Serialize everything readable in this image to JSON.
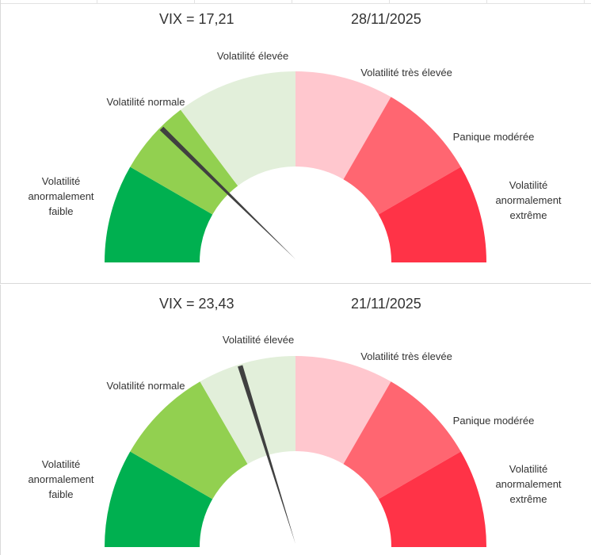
{
  "gauge_segments": [
    {
      "key": "low",
      "label_lines": [
        "Volatilité",
        "anormalement",
        "faible"
      ],
      "color": "#00b050"
    },
    {
      "key": "normal",
      "label_lines": [
        "Volatilité normale"
      ],
      "color": "#92d050"
    },
    {
      "key": "high",
      "label_lines": [
        "Volatilité élevée"
      ],
      "color": "#e2efda"
    },
    {
      "key": "very_high",
      "label_lines": [
        "Volatilité très élevée"
      ],
      "color": "#ffc7ce"
    },
    {
      "key": "panic",
      "label_lines": [
        "Panique modérée"
      ],
      "color": "#ff6671"
    },
    {
      "key": "extreme",
      "label_lines": [
        "Volatilité",
        "anormalement",
        "extrême"
      ],
      "color": "#ff3347"
    }
  ],
  "needle_color": "#404040",
  "panels": [
    {
      "vix_label": "VIX = 17,21",
      "date": "28/11/2025"
    },
    {
      "vix_label": "VIX = 23,43",
      "date": "21/11/2025"
    }
  ],
  "chart_data": [
    {
      "type": "gauge",
      "title": "VIX = 17,21",
      "subtitle": "28/11/2025",
      "value": 17.21,
      "angle_range_deg": [
        0,
        180
      ],
      "segments": [
        {
          "label": "Volatilité anormalement faible",
          "start_deg": 0,
          "end_deg": 30
        },
        {
          "label": "Volatilité normale",
          "start_deg": 30,
          "end_deg": 53
        },
        {
          "label": "Volatilité élevée",
          "start_deg": 53,
          "end_deg": 90
        },
        {
          "label": "Volatilité très élevée",
          "start_deg": 90,
          "end_deg": 120
        },
        {
          "label": "Panique modérée",
          "start_deg": 120,
          "end_deg": 150
        },
        {
          "label": "Volatilité anormalement extrême",
          "start_deg": 150,
          "end_deg": 180
        }
      ],
      "needle_deg": 45
    },
    {
      "type": "gauge",
      "title": "VIX = 23,43",
      "subtitle": "21/11/2025",
      "value": 23.43,
      "angle_range_deg": [
        0,
        180
      ],
      "segments": [
        {
          "label": "Volatilité anormalement faible",
          "start_deg": 0,
          "end_deg": 30
        },
        {
          "label": "Volatilité normale",
          "start_deg": 30,
          "end_deg": 60
        },
        {
          "label": "Volatilité élevée",
          "start_deg": 60,
          "end_deg": 90
        },
        {
          "label": "Volatilité très élevée",
          "start_deg": 90,
          "end_deg": 120
        },
        {
          "label": "Panique modérée",
          "start_deg": 120,
          "end_deg": 150
        },
        {
          "label": "Volatilité anormalement extrême",
          "start_deg": 150,
          "end_deg": 180
        }
      ],
      "needle_deg": 73
    }
  ]
}
